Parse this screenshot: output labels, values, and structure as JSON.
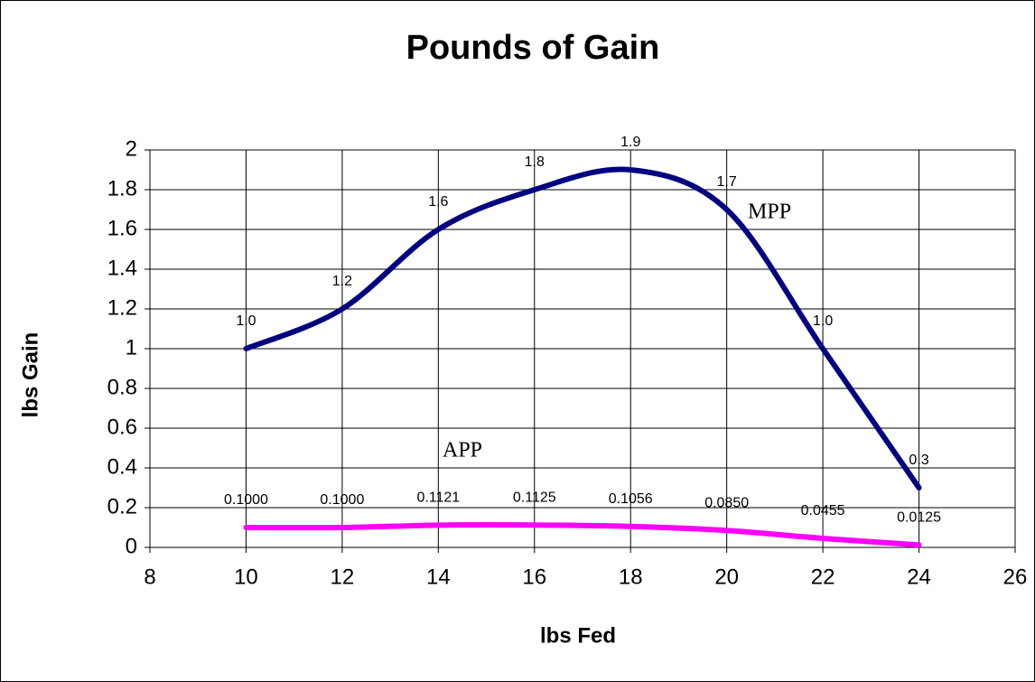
{
  "chart_data": {
    "type": "line",
    "title": "Pounds of Gain",
    "xlabel": "lbs Fed",
    "ylabel": "lbs Gain",
    "x": [
      10,
      12,
      14,
      16,
      18,
      20,
      22,
      24
    ],
    "series": [
      {
        "name": "MPP",
        "color": "#000080",
        "values": [
          1.0,
          1.2,
          1.6,
          1.8,
          1.9,
          1.7,
          1.0,
          0.3
        ],
        "value_labels": [
          "1.0",
          "1.2",
          "1.6",
          "1.8",
          "1.9",
          "1.7",
          "1.0",
          "0.3"
        ]
      },
      {
        "name": "APP",
        "color": "#ff00ff",
        "values": [
          0.1,
          0.1,
          0.1121,
          0.1125,
          0.1056,
          0.085,
          0.0455,
          0.0125
        ],
        "value_labels": [
          "0.1000",
          "0.1000",
          "0.1121",
          "0.1125",
          "0.1056",
          "0.0850",
          "0.0455",
          "0.0125"
        ]
      }
    ],
    "annotations": [
      "MPP",
      "APP"
    ],
    "xlim": [
      8,
      26
    ],
    "xticks": [
      8,
      10,
      12,
      14,
      16,
      18,
      20,
      22,
      24,
      26
    ],
    "ylim": [
      0,
      2
    ],
    "yticks": [
      0,
      0.2,
      0.4,
      0.6,
      0.8,
      1,
      1.2,
      1.4,
      1.6,
      1.8,
      2
    ],
    "grid": true
  }
}
